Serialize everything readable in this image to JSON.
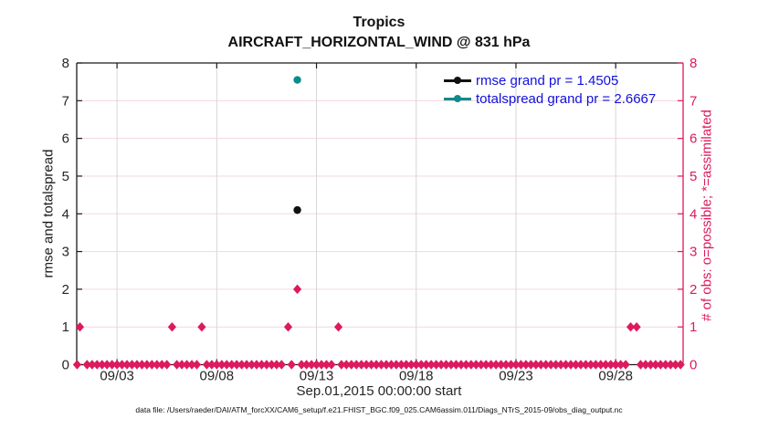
{
  "figure": {
    "caption": "data file: /Users/raeder/DAI/ATM_forcXX/CAM6_setup/f.e21.FHIST_BGC.f09_025.CAM6assim.011/Diags_NTrS_2015-09/obs_diag_output.nc"
  },
  "colors": {
    "obs_pink": "#dc1a5e",
    "totalspread_teal": "#0c8b8b",
    "rmse_black": "#111111",
    "legend_text_blue": "#1111dd",
    "grid_horizontal_pink": "#f3d7de",
    "grid_vertical_gray": "#d6d6d6",
    "axis_black": "#1a1a1a",
    "tick_label_gray": "#262626"
  },
  "chart_data": {
    "type": "scatter",
    "title": "Tropics",
    "subtitle": "AIRCRAFT_HORIZONTAL_WIND @ 831 hPa",
    "xlabel": "Sep.01,2015 00:00:00 start",
    "ylabel_left": "rmse and totalspread",
    "ylabel_right": "# of obs: o=possible; *=assimilated",
    "x_axis": {
      "unit": "days since Sep.01,2015 00:00:00",
      "range": [
        -0.02,
        30.38
      ],
      "tick_days": [
        2,
        7,
        12,
        17,
        22,
        27
      ],
      "tick_labels": [
        "09/03",
        "09/08",
        "09/13",
        "09/18",
        "09/23",
        "09/28"
      ]
    },
    "y_axis": {
      "range": [
        0,
        8
      ],
      "ticks": [
        0,
        1,
        2,
        3,
        4,
        5,
        6,
        7,
        8
      ]
    },
    "grid": {
      "horizontal": true,
      "vertical": true
    },
    "legend_position": "top-right-inside",
    "grand_pr": {
      "rmse": 1.4505,
      "totalspread": 2.6667
    },
    "series": [
      {
        "name": "rmse",
        "legend": "rmse grand pr = 1.4505",
        "marker": "filled-circle",
        "color": "#111111",
        "points": [
          {
            "day": 11.04,
            "value": 4.1
          }
        ]
      },
      {
        "name": "totalspread",
        "legend": "totalspread grand pr = 2.6667",
        "marker": "filled-circle",
        "color": "#0c8b8b",
        "points": [
          {
            "day": 11.04,
            "value": 7.55
          }
        ]
      },
      {
        "name": "obs_count_nonzero",
        "marker": "diamond",
        "color": "#dc1a5e",
        "points": [
          {
            "day": 0.14,
            "value": 1
          },
          {
            "day": 4.76,
            "value": 1
          },
          {
            "day": 6.25,
            "value": 1
          },
          {
            "day": 10.58,
            "value": 1
          },
          {
            "day": 11.04,
            "value": 2
          },
          {
            "day": 13.1,
            "value": 1
          },
          {
            "day": 27.75,
            "value": 1
          },
          {
            "day": 28.05,
            "value": 1
          }
        ]
      },
      {
        "name": "obs_count_zero_baseline",
        "marker": "diamond",
        "color": "#dc1a5e",
        "generator": {
          "start_day": 0,
          "end_day": 30.3,
          "step_day": 0.25,
          "value": 0,
          "skip_near_nonzero_tolerance": 0.14
        }
      }
    ]
  }
}
